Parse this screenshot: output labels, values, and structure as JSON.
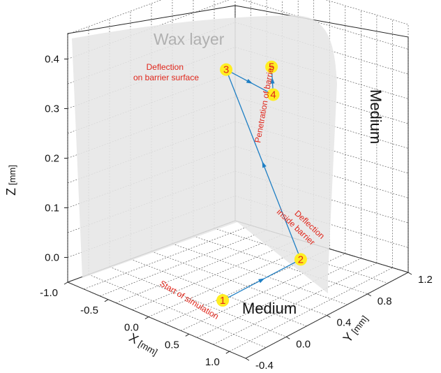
{
  "chart_data": {
    "type": "scatter",
    "title": "",
    "xlabel": "X",
    "xunit": "[mm]",
    "ylabel": "Y",
    "yunit": "[mm]",
    "zlabel": "Z",
    "zunit": "[mm]",
    "xlim": [
      -1.0,
      1.2
    ],
    "ylim": [
      -0.4,
      1.2
    ],
    "zlim": [
      -0.05,
      0.45
    ],
    "grid": true,
    "x_ticks": [
      "-1.0",
      "-0.5",
      "0.0",
      "0.5",
      "1.0"
    ],
    "y_ticks": [
      "-0.4",
      "0.0",
      "0.4",
      "0.8",
      "1.2"
    ],
    "z_ticks": [
      "0.0",
      "0.1",
      "0.2",
      "0.3",
      "0.4"
    ],
    "trajectory_color": "#1f7fc4",
    "marker_color": "#ffee22",
    "annotation_color": "#e0261b",
    "points": [
      {
        "id": "1",
        "x": 0.6,
        "y": -0.15,
        "z": 0.0,
        "annotation": "Start of simulation"
      },
      {
        "id": "2",
        "x": 0.55,
        "y": 0.65,
        "z": 0.0,
        "annotation": "Deflection inside barrier"
      },
      {
        "id": "3",
        "x": -0.48,
        "y": 0.72,
        "z": 0.32,
        "annotation": "Deflection on barrier surface"
      },
      {
        "id": "4",
        "x": 0.1,
        "y": 0.73,
        "z": 0.3,
        "annotation": ""
      },
      {
        "id": "5",
        "x": 0.04,
        "y": 0.76,
        "z": 0.35,
        "annotation": "Penetration of barrier"
      }
    ],
    "surfaces": [
      {
        "name": "Wax layer",
        "color": "#e8e8e8"
      }
    ],
    "region_labels": [
      "Medium",
      "Medium"
    ]
  }
}
